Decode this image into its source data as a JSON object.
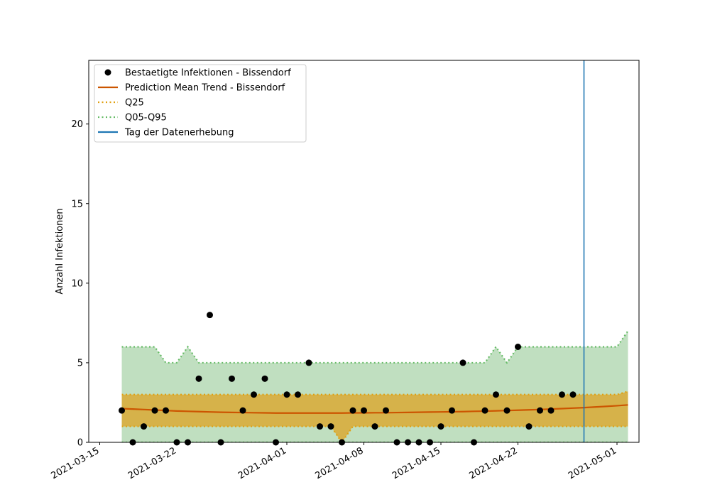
{
  "chart_data": {
    "type": "line",
    "x_is_date": true,
    "ylabel": "Anzahl Infektionen",
    "xlim": [
      "2021-03-14",
      "2021-05-03"
    ],
    "ylim": [
      0,
      24
    ],
    "yticks": [
      0,
      5,
      10,
      15,
      20
    ],
    "xticks": [
      "2021-03-15",
      "2021-03-22",
      "2021-04-01",
      "2021-04-08",
      "2021-04-15",
      "2021-04-22",
      "2021-05-01"
    ],
    "grid": false,
    "legend_position": "upper-left",
    "legend": [
      {
        "label": "Bestaetigte Infektionen - Bissendorf",
        "kind": "marker",
        "color": "#000000"
      },
      {
        "label": "Prediction Mean Trend - Bissendorf",
        "kind": "line",
        "color": "#cc5500"
      },
      {
        "label": "Q25",
        "kind": "dotted",
        "color": "#e0a010"
      },
      {
        "label": "Q05-Q95",
        "kind": "dotted",
        "color": "#66bb66"
      },
      {
        "label": "Tag der Datenerhebung",
        "kind": "line",
        "color": "#1f77b4"
      }
    ],
    "colors": {
      "observed": "#000000",
      "trend": "#cc5500",
      "q25_band": "#d6b24a",
      "q25_line": "#e0a010",
      "q05_band": "#c0dfc0",
      "q05_line": "#66bb66",
      "vline": "#1f77b4"
    },
    "observed": {
      "name": "Bestaetigte Infektionen - Bissendorf",
      "x": [
        "2021-03-17",
        "2021-03-18",
        "2021-03-19",
        "2021-03-20",
        "2021-03-21",
        "2021-03-22",
        "2021-03-23",
        "2021-03-24",
        "2021-03-25",
        "2021-03-26",
        "2021-03-27",
        "2021-03-28",
        "2021-03-29",
        "2021-03-30",
        "2021-03-31",
        "2021-04-01",
        "2021-04-02",
        "2021-04-03",
        "2021-04-04",
        "2021-04-05",
        "2021-04-06",
        "2021-04-07",
        "2021-04-08",
        "2021-04-09",
        "2021-04-10",
        "2021-04-11",
        "2021-04-12",
        "2021-04-13",
        "2021-04-14",
        "2021-04-15",
        "2021-04-16",
        "2021-04-17",
        "2021-04-18",
        "2021-04-19",
        "2021-04-20",
        "2021-04-21",
        "2021-04-22",
        "2021-04-23",
        "2021-04-24",
        "2021-04-25",
        "2021-04-26",
        "2021-04-27"
      ],
      "y": [
        2,
        0,
        1,
        2,
        2,
        0,
        0,
        4,
        8,
        0,
        4,
        2,
        3,
        4,
        0,
        3,
        3,
        5,
        1,
        1,
        0,
        2,
        2,
        1,
        2,
        0,
        0,
        0,
        0,
        1,
        2,
        5,
        0,
        2,
        3,
        2,
        6,
        1,
        2,
        2,
        3,
        3
      ]
    },
    "forecast": {
      "x": [
        "2021-03-17",
        "2021-03-18",
        "2021-03-19",
        "2021-03-20",
        "2021-03-21",
        "2021-03-22",
        "2021-03-23",
        "2021-03-24",
        "2021-03-25",
        "2021-03-26",
        "2021-03-27",
        "2021-03-28",
        "2021-03-29",
        "2021-03-30",
        "2021-03-31",
        "2021-04-01",
        "2021-04-02",
        "2021-04-03",
        "2021-04-04",
        "2021-04-05",
        "2021-04-06",
        "2021-04-07",
        "2021-04-08",
        "2021-04-09",
        "2021-04-10",
        "2021-04-11",
        "2021-04-12",
        "2021-04-13",
        "2021-04-14",
        "2021-04-15",
        "2021-04-16",
        "2021-04-17",
        "2021-04-18",
        "2021-04-19",
        "2021-04-20",
        "2021-04-21",
        "2021-04-22",
        "2021-04-23",
        "2021-04-24",
        "2021-04-25",
        "2021-04-26",
        "2021-04-27",
        "2021-04-28",
        "2021-04-29",
        "2021-04-30",
        "2021-05-01",
        "2021-05-02"
      ],
      "mean": [
        2.12,
        2.09,
        2.06,
        2.03,
        2.0,
        1.97,
        1.95,
        1.93,
        1.91,
        1.89,
        1.88,
        1.87,
        1.86,
        1.85,
        1.84,
        1.84,
        1.84,
        1.84,
        1.84,
        1.84,
        1.84,
        1.85,
        1.85,
        1.86,
        1.86,
        1.87,
        1.88,
        1.89,
        1.9,
        1.91,
        1.92,
        1.93,
        1.95,
        1.96,
        1.98,
        2.0,
        2.02,
        2.04,
        2.06,
        2.09,
        2.12,
        2.15,
        2.18,
        2.22,
        2.26,
        2.3,
        2.35
      ],
      "q25_lower": [
        1,
        1,
        1,
        1,
        1,
        1,
        1,
        1,
        1,
        1,
        1,
        1,
        1,
        1,
        1,
        1,
        1,
        1,
        1,
        1,
        0,
        1,
        1,
        1,
        1,
        1,
        1,
        1,
        1,
        1,
        1,
        1,
        1,
        1,
        1,
        1,
        1,
        1,
        1,
        1,
        1,
        1,
        1,
        1,
        1,
        1,
        1
      ],
      "q25_upper": [
        3,
        3,
        3,
        3,
        3,
        3,
        3,
        3,
        3,
        3,
        3,
        3,
        3,
        3,
        3,
        3,
        3,
        3,
        3,
        3,
        3,
        3,
        3,
        3,
        3,
        3,
        3,
        3,
        3,
        3,
        3,
        3,
        3,
        3,
        3,
        3,
        3,
        3,
        3,
        3,
        3,
        3,
        3,
        3,
        3,
        3,
        3.2
      ],
      "q05_lower": [
        0,
        0,
        0,
        0,
        0,
        0,
        0,
        0,
        0,
        0,
        0,
        0,
        0,
        0,
        0,
        0,
        0,
        0,
        0,
        0,
        0,
        0,
        0,
        0,
        0,
        0,
        0,
        0,
        0,
        0,
        0,
        0,
        0,
        0,
        0,
        0,
        0,
        0,
        0,
        0,
        0,
        0,
        0,
        0,
        0,
        0,
        0
      ],
      "q95_upper": [
        6,
        6,
        6,
        6,
        5,
        5,
        6,
        5,
        5,
        5,
        5,
        5,
        5,
        5,
        5,
        5,
        5,
        5,
        5,
        5,
        5,
        5,
        5,
        5,
        5,
        5,
        5,
        5,
        5,
        5,
        5,
        5,
        5,
        5,
        6,
        5,
        6,
        6,
        6,
        6,
        6,
        6,
        6,
        6,
        6,
        6,
        7
      ]
    },
    "vline": {
      "label": "Tag der Datenerhebung",
      "x": "2021-04-28"
    }
  }
}
